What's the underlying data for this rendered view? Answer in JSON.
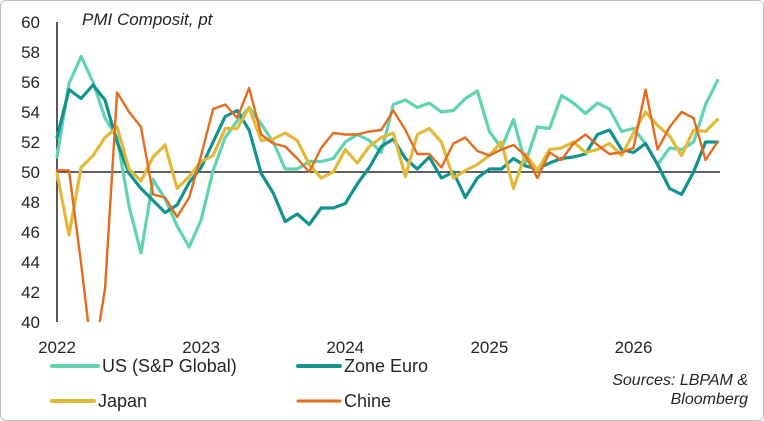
{
  "chart_data": {
    "type": "line",
    "title": "PMI Composit, pt",
    "source_lines": [
      "Sources: LBPAM &",
      "Bloomberg"
    ],
    "xlabel": "",
    "ylabel": "",
    "ylim": [
      40,
      60
    ],
    "yticks": [
      "40",
      "42",
      "44",
      "46",
      "48",
      "50",
      "52",
      "54",
      "56",
      "58",
      "60"
    ],
    "xlim": [
      2022.0,
      2026.6
    ],
    "xticks": [
      "2022",
      "2023",
      "2024",
      "2025",
      "2026"
    ],
    "baseline": 50,
    "grid": false,
    "legend_position": "bottom",
    "series": [
      {
        "name": "US (S&P Global)",
        "color": "#5fd3b2",
        "x": [
          2022.0,
          2022.083,
          2022.167,
          2022.25,
          2022.333,
          2022.417,
          2022.5,
          2022.583,
          2022.667,
          2022.75,
          2022.833,
          2022.917,
          2023.0,
          2023.083,
          2023.167,
          2023.25,
          2023.333,
          2023.417,
          2023.5,
          2023.583,
          2023.667,
          2023.75,
          2023.833,
          2023.917,
          2024.0,
          2024.083,
          2024.167,
          2024.25,
          2024.333,
          2024.417,
          2024.5,
          2024.583,
          2024.667,
          2024.75,
          2024.833,
          2024.917,
          2025.0,
          2025.083,
          2025.167,
          2025.25,
          2025.333,
          2025.417,
          2025.5,
          2025.583,
          2025.667,
          2025.75,
          2025.833,
          2025.917,
          2026.0,
          2026.083,
          2026.167,
          2026.25,
          2026.333,
          2026.417,
          2026.5,
          2026.583
        ],
        "values": [
          51.0,
          55.9,
          57.7,
          56.0,
          53.6,
          52.3,
          47.7,
          44.6,
          49.5,
          48.2,
          46.4,
          45.0,
          46.8,
          50.1,
          52.3,
          53.4,
          54.3,
          53.2,
          52.0,
          50.2,
          50.2,
          50.7,
          50.7,
          50.9,
          52.0,
          52.5,
          52.1,
          51.3,
          54.5,
          54.8,
          54.3,
          54.6,
          54.0,
          54.1,
          54.9,
          55.4,
          52.7,
          51.6,
          53.5,
          50.6,
          53.0,
          52.9,
          55.1,
          54.6,
          53.9,
          54.6,
          54.2,
          52.7,
          52.9,
          51.9,
          50.5,
          51.6,
          51.5,
          52.0,
          54.5,
          56.1
        ]
      },
      {
        "name": "Zone Euro",
        "color": "#13938f",
        "x": [
          2022.0,
          2022.083,
          2022.167,
          2022.25,
          2022.333,
          2022.417,
          2022.5,
          2022.583,
          2022.667,
          2022.75,
          2022.833,
          2022.917,
          2023.0,
          2023.083,
          2023.167,
          2023.25,
          2023.333,
          2023.417,
          2023.5,
          2023.583,
          2023.667,
          2023.75,
          2023.833,
          2023.917,
          2024.0,
          2024.083,
          2024.167,
          2024.25,
          2024.333,
          2024.417,
          2024.5,
          2024.583,
          2024.667,
          2024.75,
          2024.833,
          2024.917,
          2025.0,
          2025.083,
          2025.167,
          2025.25,
          2025.333,
          2025.417,
          2025.5,
          2025.583,
          2025.667,
          2025.75,
          2025.833,
          2025.917,
          2026.0,
          2026.083,
          2026.167,
          2026.25,
          2026.333,
          2026.417,
          2026.5,
          2026.583
        ],
        "values": [
          52.3,
          55.5,
          54.9,
          55.8,
          54.8,
          52.0,
          49.9,
          48.9,
          48.1,
          47.3,
          47.8,
          49.3,
          50.3,
          52.0,
          53.7,
          54.1,
          52.8,
          49.9,
          48.6,
          46.7,
          47.2,
          46.5,
          47.6,
          47.6,
          47.9,
          49.2,
          50.3,
          51.7,
          52.2,
          50.9,
          50.2,
          51.0,
          49.6,
          50.0,
          48.3,
          49.6,
          50.2,
          50.2,
          50.9,
          50.4,
          50.2,
          50.6,
          50.9,
          51.0,
          51.2,
          52.5,
          52.8,
          51.5,
          51.3,
          51.9,
          50.5,
          48.9,
          48.5,
          50.0,
          52.0,
          52.0
        ]
      },
      {
        "name": "Japan",
        "color": "#e3b93a",
        "x": [
          2022.0,
          2022.083,
          2022.167,
          2022.25,
          2022.333,
          2022.417,
          2022.5,
          2022.583,
          2022.667,
          2022.75,
          2022.833,
          2022.917,
          2023.0,
          2023.083,
          2023.167,
          2023.25,
          2023.333,
          2023.417,
          2023.5,
          2023.583,
          2023.667,
          2023.75,
          2023.833,
          2023.917,
          2024.0,
          2024.083,
          2024.167,
          2024.25,
          2024.333,
          2024.417,
          2024.5,
          2024.583,
          2024.667,
          2024.75,
          2024.833,
          2024.917,
          2025.0,
          2025.083,
          2025.167,
          2025.25,
          2025.333,
          2025.417,
          2025.5,
          2025.583,
          2025.667,
          2025.75,
          2025.833,
          2025.917,
          2026.0,
          2026.083,
          2026.167,
          2026.25,
          2026.333,
          2026.417,
          2026.5,
          2026.583
        ],
        "values": [
          49.9,
          45.8,
          50.3,
          51.1,
          52.3,
          53.0,
          50.2,
          49.4,
          51.0,
          51.8,
          48.9,
          49.7,
          50.7,
          51.1,
          52.9,
          52.9,
          54.3,
          52.1,
          52.2,
          52.6,
          52.1,
          50.5,
          49.6,
          50.0,
          51.5,
          50.6,
          51.7,
          52.3,
          52.6,
          49.7,
          52.5,
          52.9,
          52.0,
          49.6,
          50.1,
          50.5,
          51.1,
          52.0,
          48.9,
          51.2,
          50.1,
          51.5,
          51.6,
          52.0,
          51.3,
          51.5,
          51.9,
          51.1,
          52.6,
          54.0,
          53.1,
          52.4,
          51.1,
          52.8,
          52.7,
          53.5
        ]
      },
      {
        "name": "Chine",
        "color": "#e36c1f",
        "x": [
          2022.0,
          2022.083,
          2022.167,
          2022.25,
          2022.333,
          2022.417,
          2022.5,
          2022.583,
          2022.667,
          2022.75,
          2022.833,
          2022.917,
          2023.0,
          2023.083,
          2023.167,
          2023.25,
          2023.333,
          2023.417,
          2023.5,
          2023.583,
          2023.667,
          2023.75,
          2023.833,
          2023.917,
          2024.0,
          2024.083,
          2024.167,
          2024.25,
          2024.333,
          2024.417,
          2024.5,
          2024.583,
          2024.667,
          2024.75,
          2024.833,
          2024.917,
          2025.0,
          2025.083,
          2025.167,
          2025.25,
          2025.333,
          2025.417,
          2025.5,
          2025.583,
          2025.667,
          2025.75,
          2025.833,
          2025.917,
          2026.0,
          2026.083,
          2026.167,
          2026.25,
          2026.333,
          2026.417,
          2026.5,
          2026.583
        ],
        "values": [
          50.1,
          50.1,
          43.9,
          37.2,
          42.2,
          55.3,
          54.0,
          53.0,
          48.5,
          48.3,
          47.0,
          48.3,
          51.1,
          54.2,
          54.5,
          53.6,
          55.6,
          52.5,
          51.9,
          51.7,
          50.9,
          50.0,
          51.6,
          52.6,
          52.5,
          52.5,
          52.7,
          52.8,
          54.1,
          52.8,
          51.2,
          51.2,
          50.3,
          51.9,
          52.3,
          51.4,
          51.1,
          51.5,
          51.8,
          51.1,
          49.6,
          51.3,
          50.8,
          51.9,
          52.5,
          51.8,
          51.2,
          51.3,
          51.6,
          55.5,
          51.5,
          53.0,
          54.0,
          53.6,
          50.8,
          52.0
        ]
      }
    ]
  }
}
